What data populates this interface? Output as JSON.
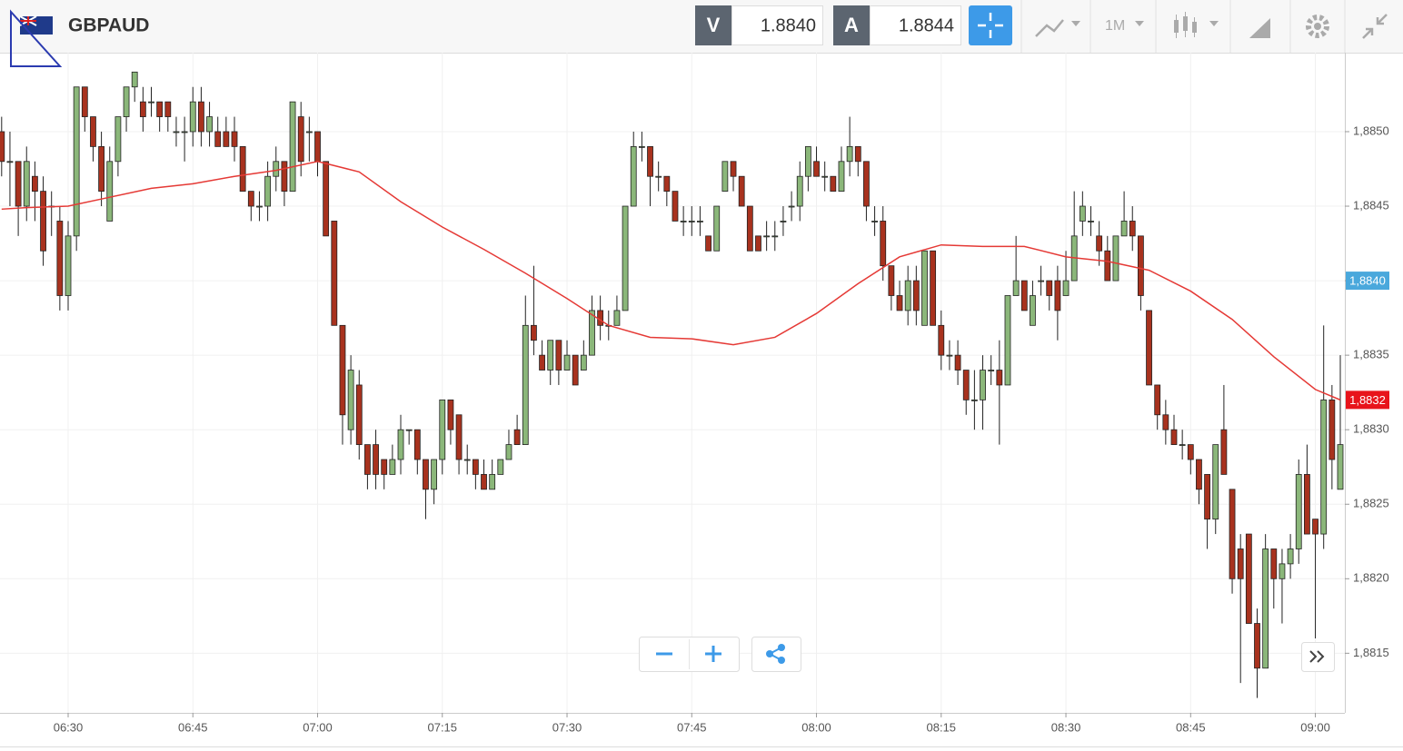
{
  "toolbar": {
    "bid_label": "V",
    "bid": "1.8840",
    "ask_label": "A",
    "ask": "1.8844",
    "timeframe": "1M"
  },
  "chart_data": {
    "type": "candlestick",
    "title": "GBPAUD",
    "x": [
      "06:22",
      "06:23",
      "06:24",
      "06:25",
      "06:26",
      "06:27",
      "06:28",
      "06:29",
      "06:30",
      "06:31",
      "06:32",
      "06:33",
      "06:34",
      "06:35",
      "06:36",
      "06:37",
      "06:38",
      "06:39",
      "06:40",
      "06:41",
      "06:42",
      "06:43",
      "06:44",
      "06:45",
      "06:46",
      "06:47",
      "06:48",
      "06:49",
      "06:50",
      "06:51",
      "06:52",
      "06:53",
      "06:54",
      "06:55",
      "06:56",
      "06:57",
      "06:58",
      "06:59",
      "07:00",
      "07:01",
      "07:02",
      "07:03",
      "07:04",
      "07:05",
      "07:06",
      "07:07",
      "07:08",
      "07:09",
      "07:10",
      "07:11",
      "07:12",
      "07:13",
      "07:14",
      "07:15",
      "07:16",
      "07:17",
      "07:18",
      "07:19",
      "07:20",
      "07:21",
      "07:22",
      "07:23",
      "07:24",
      "07:25",
      "07:26",
      "07:27",
      "07:28",
      "07:29",
      "07:30",
      "07:31",
      "07:32",
      "07:33",
      "07:34",
      "07:35",
      "07:36",
      "07:37",
      "07:38",
      "07:39",
      "07:40",
      "07:41",
      "07:42",
      "07:43",
      "07:44",
      "07:45",
      "07:46",
      "07:47",
      "07:48",
      "07:49",
      "07:50",
      "07:51",
      "07:52",
      "07:53",
      "07:54",
      "07:55",
      "07:56",
      "07:57",
      "07:58",
      "07:59",
      "08:00",
      "08:01",
      "08:02",
      "08:03",
      "08:04",
      "08:05",
      "08:06",
      "08:07",
      "08:08",
      "08:09",
      "08:10",
      "08:11",
      "08:12",
      "08:13",
      "08:14",
      "08:15",
      "08:16",
      "08:17",
      "08:18",
      "08:19",
      "08:20",
      "08:21",
      "08:22",
      "08:23",
      "08:24",
      "08:25",
      "08:26",
      "08:27",
      "08:28",
      "08:29",
      "08:30",
      "08:31",
      "08:32",
      "08:33",
      "08:34",
      "08:35",
      "08:36",
      "08:37",
      "08:38",
      "08:39",
      "08:40",
      "08:41",
      "08:42",
      "08:43",
      "08:44",
      "08:45",
      "08:46",
      "08:47",
      "08:48",
      "08:49",
      "08:50",
      "08:51",
      "08:52",
      "08:53",
      "08:54",
      "08:55",
      "08:56",
      "08:57",
      "08:58",
      "08:59",
      "09:00",
      "09:01",
      "09:02",
      "09:03"
    ],
    "open": [
      1.885,
      1.8848,
      1.8848,
      1.8845,
      1.8847,
      1.8846,
      1.8845,
      1.8844,
      1.8839,
      1.8843,
      1.8853,
      1.8851,
      1.8849,
      1.8844,
      1.8848,
      1.8851,
      1.8853,
      1.8852,
      1.8852,
      1.8852,
      1.8852,
      1.885,
      1.885,
      1.885,
      1.8852,
      1.885,
      1.885,
      1.885,
      1.885,
      1.8849,
      1.8846,
      1.8845,
      1.8845,
      1.8847,
      1.8848,
      1.8846,
      1.8851,
      1.885,
      1.885,
      1.8848,
      1.8844,
      1.8837,
      1.883,
      1.8833,
      1.8829,
      1.8829,
      1.8828,
      1.8827,
      1.8828,
      1.883,
      1.883,
      1.8828,
      1.8826,
      1.8828,
      1.8832,
      1.8831,
      1.8828,
      1.8828,
      1.8827,
      1.8826,
      1.8827,
      1.8828,
      1.883,
      1.8829,
      1.8837,
      1.8835,
      1.8834,
      1.8836,
      1.8834,
      1.8835,
      1.8834,
      1.8835,
      1.8838,
      1.8837,
      1.8837,
      1.8838,
      1.8845,
      1.8849,
      1.8849,
      1.8847,
      1.8847,
      1.8846,
      1.8844,
      1.8844,
      1.8844,
      1.8843,
      1.8842,
      1.8846,
      1.8848,
      1.8847,
      1.8845,
      1.8843,
      1.8843,
      1.8843,
      1.8844,
      1.8845,
      1.8845,
      1.8847,
      1.8848,
      1.8847,
      1.8847,
      1.8846,
      1.8848,
      1.8849,
      1.8848,
      1.8844,
      1.8844,
      1.8841,
      1.8839,
      1.8838,
      1.884,
      1.8837,
      1.8842,
      1.8837,
      1.8835,
      1.8835,
      1.8834,
      1.8832,
      1.8832,
      1.8834,
      1.8834,
      1.8833,
      1.8839,
      1.884,
      1.8837,
      1.884,
      1.884,
      1.884,
      1.8839,
      1.884,
      1.8844,
      1.8844,
      1.8843,
      1.8842,
      1.884,
      1.8843,
      1.8844,
      1.8843,
      1.8838,
      1.8833,
      1.8831,
      1.883,
      1.8829,
      1.8829,
      1.8828,
      1.8827,
      1.8824,
      1.883,
      1.8826,
      1.8822,
      1.8823,
      1.8817,
      1.8814,
      1.8822,
      1.882,
      1.8821,
      1.8822,
      1.8827,
      1.8824,
      1.8823,
      1.8832,
      1.8826
    ],
    "high": [
      1.8851,
      1.885,
      1.8848,
      1.8849,
      1.8848,
      1.8847,
      1.8846,
      1.8845,
      1.8844,
      1.8853,
      1.8853,
      1.8851,
      1.885,
      1.8849,
      1.8851,
      1.8853,
      1.8854,
      1.8853,
      1.8853,
      1.8852,
      1.8852,
      1.8851,
      1.8851,
      1.8853,
      1.8853,
      1.8852,
      1.8851,
      1.8851,
      1.8851,
      1.8849,
      1.8846,
      1.8846,
      1.8848,
      1.8849,
      1.8848,
      1.8852,
      1.8852,
      1.8851,
      1.885,
      1.8848,
      1.8844,
      1.8837,
      1.8835,
      1.8834,
      1.8829,
      1.883,
      1.8828,
      1.8829,
      1.8831,
      1.883,
      1.883,
      1.8828,
      1.8828,
      1.8832,
      1.8832,
      1.8831,
      1.8829,
      1.8828,
      1.8828,
      1.8828,
      1.8828,
      1.883,
      1.8831,
      1.8839,
      1.8841,
      1.8836,
      1.8836,
      1.8836,
      1.8836,
      1.8835,
      1.8836,
      1.8839,
      1.8839,
      1.8838,
      1.8839,
      1.8845,
      1.885,
      1.885,
      1.8849,
      1.8848,
      1.8847,
      1.8846,
      1.8845,
      1.8845,
      1.8845,
      1.8843,
      1.8845,
      1.8848,
      1.8848,
      1.8847,
      1.8845,
      1.8843,
      1.8844,
      1.8844,
      1.8845,
      1.8846,
      1.8848,
      1.8849,
      1.8849,
      1.8848,
      1.8847,
      1.8849,
      1.8851,
      1.8849,
      1.8848,
      1.8845,
      1.8845,
      1.8841,
      1.884,
      1.8841,
      1.8841,
      1.8842,
      1.8842,
      1.8838,
      1.8836,
      1.8836,
      1.8834,
      1.8834,
      1.8835,
      1.8835,
      1.8836,
      1.8839,
      1.8843,
      1.884,
      1.884,
      1.8841,
      1.884,
      1.8841,
      1.8842,
      1.8846,
      1.8846,
      1.8845,
      1.8844,
      1.8843,
      1.8843,
      1.8846,
      1.8845,
      1.8843,
      1.8838,
      1.8833,
      1.8832,
      1.8831,
      1.883,
      1.8829,
      1.8828,
      1.8827,
      1.8829,
      1.8833,
      1.8826,
      1.8823,
      1.8823,
      1.8818,
      1.8823,
      1.8822,
      1.8822,
      1.8823,
      1.8828,
      1.8829,
      1.8824,
      1.8837,
      1.8833,
      1.8835
    ],
    "low": [
      1.8847,
      1.8845,
      1.8843,
      1.8844,
      1.8844,
      1.8841,
      1.8843,
      1.8838,
      1.8838,
      1.8842,
      1.885,
      1.8848,
      1.8845,
      1.8844,
      1.8847,
      1.885,
      1.8852,
      1.885,
      1.8851,
      1.885,
      1.885,
      1.8849,
      1.8848,
      1.8849,
      1.8849,
      1.8849,
      1.8849,
      1.8849,
      1.8848,
      1.8846,
      1.8844,
      1.8844,
      1.8844,
      1.8846,
      1.8845,
      1.8846,
      1.8847,
      1.8848,
      1.8847,
      1.8843,
      1.8837,
      1.8829,
      1.8829,
      1.8828,
      1.8826,
      1.8826,
      1.8826,
      1.8827,
      1.8827,
      1.8829,
      1.8827,
      1.8824,
      1.8825,
      1.8827,
      1.8829,
      1.8827,
      1.8827,
      1.8826,
      1.8826,
      1.8826,
      1.8827,
      1.8828,
      1.8829,
      1.8829,
      1.8835,
      1.8834,
      1.8833,
      1.8833,
      1.8834,
      1.8833,
      1.8834,
      1.8835,
      1.8836,
      1.8836,
      1.8837,
      1.8838,
      1.8845,
      1.8848,
      1.8845,
      1.8846,
      1.8845,
      1.8844,
      1.8843,
      1.8843,
      1.8843,
      1.8842,
      1.8842,
      1.8846,
      1.8846,
      1.8845,
      1.8842,
      1.8842,
      1.8842,
      1.8842,
      1.8843,
      1.8844,
      1.8844,
      1.8846,
      1.8847,
      1.8846,
      1.8846,
      1.8846,
      1.8847,
      1.8847,
      1.8844,
      1.8843,
      1.884,
      1.8838,
      1.8838,
      1.8837,
      1.8837,
      1.8837,
      1.8837,
      1.8834,
      1.8834,
      1.8833,
      1.8831,
      1.883,
      1.883,
      1.8833,
      1.8829,
      1.8833,
      1.8839,
      1.8838,
      1.8837,
      1.8839,
      1.8838,
      1.8836,
      1.8839,
      1.884,
      1.8843,
      1.8843,
      1.8841,
      1.884,
      1.884,
      1.8843,
      1.8842,
      1.8838,
      1.8833,
      1.883,
      1.8829,
      1.8829,
      1.8828,
      1.8827,
      1.8825,
      1.8822,
      1.8823,
      1.8827,
      1.8819,
      1.8813,
      1.8817,
      1.8812,
      1.8814,
      1.8818,
      1.8817,
      1.882,
      1.8821,
      1.8823,
      1.8816,
      1.8822,
      1.8826,
      1.8826
    ],
    "close": [
      1.8848,
      1.8848,
      1.8845,
      1.8848,
      1.8846,
      1.8842,
      1.8845,
      1.8839,
      1.8843,
      1.8853,
      1.8851,
      1.8849,
      1.8846,
      1.8848,
      1.8851,
      1.8853,
      1.8854,
      1.8851,
      1.8852,
      1.8851,
      1.8851,
      1.885,
      1.885,
      1.8852,
      1.885,
      1.8851,
      1.8849,
      1.8849,
      1.8849,
      1.8846,
      1.8845,
      1.8845,
      1.8847,
      1.8848,
      1.8846,
      1.8852,
      1.8848,
      1.885,
      1.8848,
      1.8843,
      1.8837,
      1.8831,
      1.8834,
      1.8829,
      1.8827,
      1.8827,
      1.8827,
      1.8828,
      1.883,
      1.883,
      1.8828,
      1.8826,
      1.8828,
      1.8832,
      1.883,
      1.8828,
      1.8828,
      1.8827,
      1.8826,
      1.8827,
      1.8828,
      1.8829,
      1.8829,
      1.8837,
      1.8836,
      1.8834,
      1.8836,
      1.8834,
      1.8835,
      1.8833,
      1.8835,
      1.8838,
      1.8837,
      1.8837,
      1.8838,
      1.8845,
      1.8849,
      1.8849,
      1.8847,
      1.8847,
      1.8846,
      1.8844,
      1.8844,
      1.8844,
      1.8844,
      1.8842,
      1.8845,
      1.8848,
      1.8847,
      1.8845,
      1.8842,
      1.8842,
      1.8843,
      1.8843,
      1.8844,
      1.8845,
      1.8847,
      1.8849,
      1.8847,
      1.8847,
      1.8846,
      1.8848,
      1.8849,
      1.8848,
      1.8845,
      1.8844,
      1.8841,
      1.8839,
      1.8838,
      1.884,
      1.8838,
      1.8842,
      1.8837,
      1.8835,
      1.8835,
      1.8834,
      1.8832,
      1.8832,
      1.8834,
      1.8834,
      1.8833,
      1.8839,
      1.884,
      1.8838,
      1.8839,
      1.884,
      1.8839,
      1.8838,
      1.884,
      1.8843,
      1.8845,
      1.8844,
      1.8842,
      1.884,
      1.8843,
      1.8844,
      1.8843,
      1.8839,
      1.8833,
      1.8831,
      1.883,
      1.8829,
      1.8829,
      1.8828,
      1.8826,
      1.8824,
      1.8829,
      1.8827,
      1.882,
      1.882,
      1.8817,
      1.8814,
      1.8822,
      1.882,
      1.8821,
      1.8822,
      1.8827,
      1.8823,
      1.8823,
      1.8832,
      1.8828,
      1.8829
    ],
    "up_color": "#8bb77a",
    "down_color": "#a8321e",
    "ylim": [
      1.8811,
      1.88553
    ],
    "yticks": [
      {
        "value": 1.8815,
        "label": "1,8815"
      },
      {
        "value": 1.882,
        "label": "1,8820"
      },
      {
        "value": 1.8825,
        "label": "1,8825"
      },
      {
        "value": 1.883,
        "label": "1,8830"
      },
      {
        "value": 1.8835,
        "label": "1,8835"
      },
      {
        "value": 1.884,
        "label": "1,8840"
      },
      {
        "value": 1.8845,
        "label": "1,8845"
      },
      {
        "value": 1.885,
        "label": "1,8850"
      }
    ],
    "xticks": [
      "06:30",
      "06:45",
      "07:00",
      "07:15",
      "07:30",
      "07:45",
      "08:00",
      "08:15",
      "08:30",
      "08:45",
      "09:00"
    ],
    "grid": true,
    "overlay": {
      "type": "line",
      "color": "#e53935",
      "x": [
        "06:22",
        "06:25",
        "06:30",
        "06:35",
        "06:40",
        "06:45",
        "06:50",
        "06:55",
        "07:00",
        "07:05",
        "07:10",
        "07:15",
        "07:20",
        "07:25",
        "07:30",
        "07:35",
        "07:40",
        "07:45",
        "07:50",
        "07:55",
        "08:00",
        "08:05",
        "08:10",
        "08:15",
        "08:20",
        "08:25",
        "08:30",
        "08:35",
        "08:40",
        "08:45",
        "08:50",
        "08:55",
        "09:00",
        "09:03"
      ],
      "values": [
        1.88448,
        1.88449,
        1.8845,
        1.88456,
        1.88462,
        1.88465,
        1.8847,
        1.88474,
        1.8848,
        1.88473,
        1.88453,
        1.88436,
        1.88421,
        1.88405,
        1.88388,
        1.8837,
        1.88362,
        1.88361,
        1.88357,
        1.88362,
        1.88378,
        1.88398,
        1.88416,
        1.88424,
        1.88423,
        1.88423,
        1.88416,
        1.88413,
        1.88407,
        1.88393,
        1.88374,
        1.88349,
        1.88327,
        1.8832
      ]
    },
    "price_tags": [
      {
        "value": 1.884,
        "label": "1,8840",
        "color": "#4aa8dc"
      },
      {
        "value": 1.8832,
        "label": "1,8832",
        "color": "#e8141b"
      }
    ]
  }
}
